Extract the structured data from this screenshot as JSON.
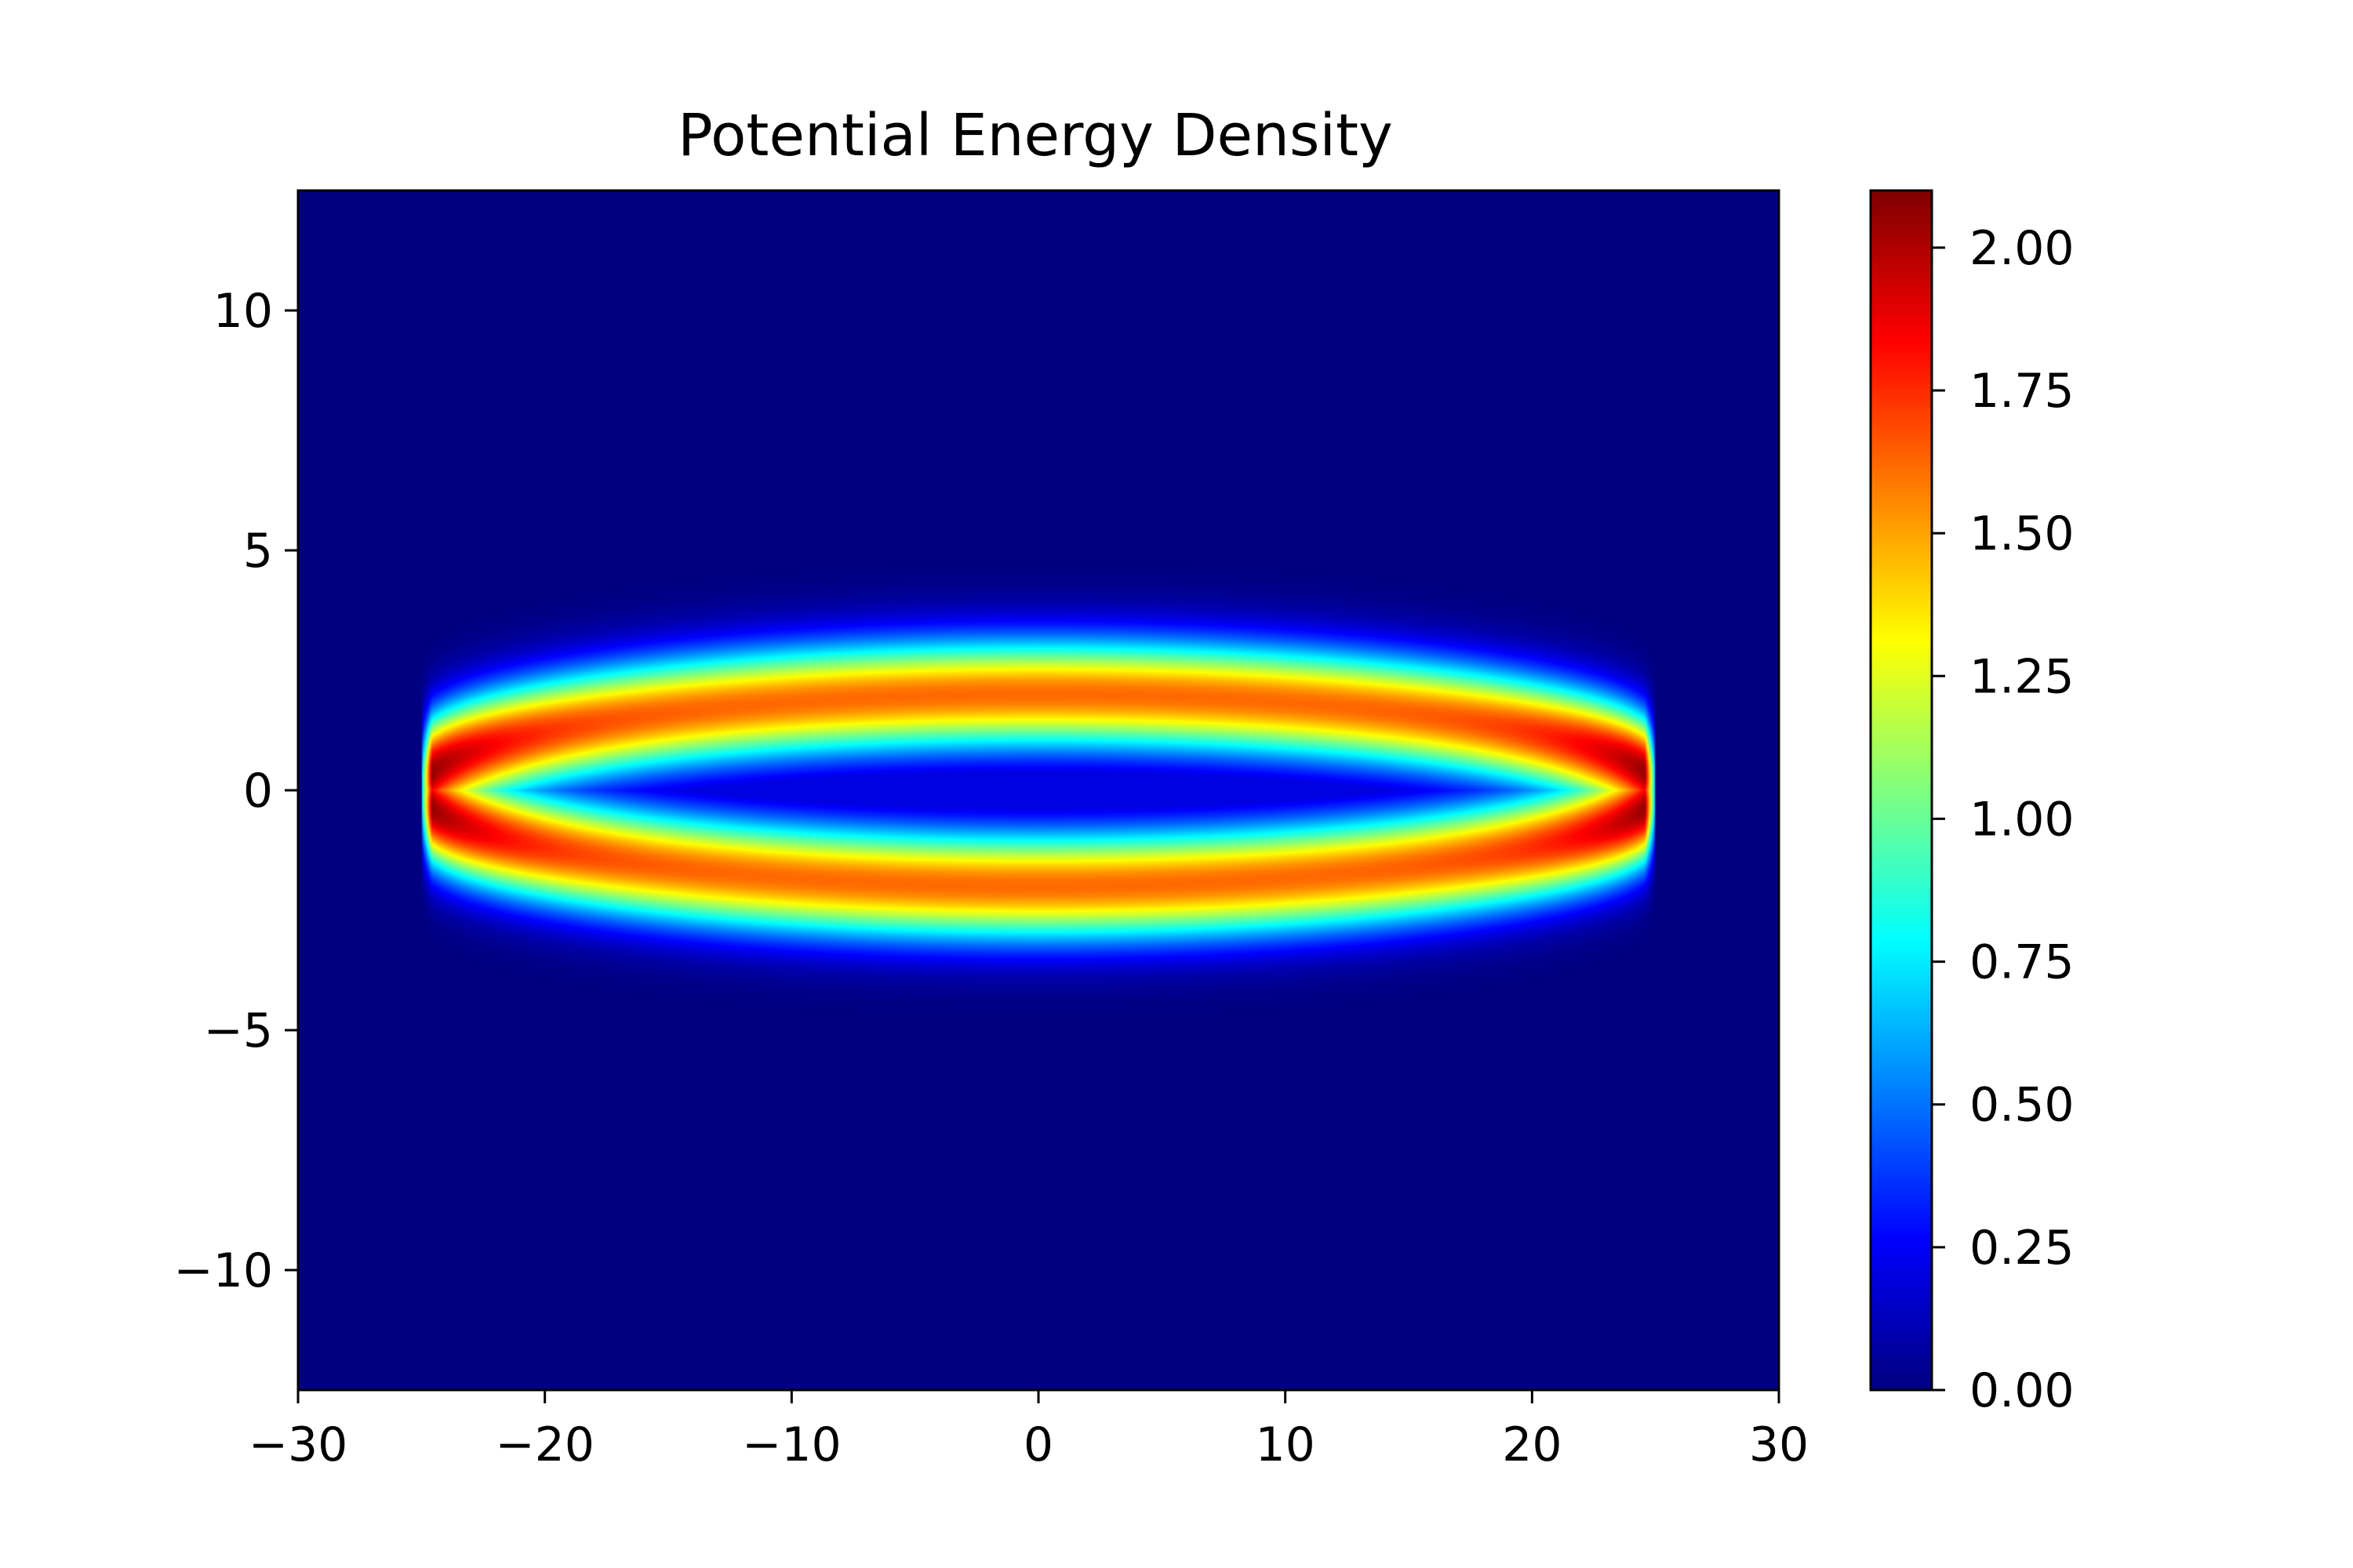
{
  "chart_data": {
    "type": "heatmap",
    "title": "Potential Energy Density",
    "xlabel": "",
    "ylabel": "",
    "xlim": [
      -30,
      30
    ],
    "ylim": [
      -12.5,
      12.5
    ],
    "x_ticks": [
      -30,
      -20,
      -10,
      0,
      10,
      20,
      30
    ],
    "x_tick_labels": [
      "−30",
      "−20",
      "−10",
      "0",
      "10",
      "20",
      "30"
    ],
    "y_ticks": [
      -10,
      -5,
      0,
      5,
      10
    ],
    "y_tick_labels": [
      "−10",
      "−5",
      "0",
      "5",
      "10"
    ],
    "colormap": "jet",
    "colorbar": {
      "vmin": 0,
      "vmax": 2.1,
      "ticks": [
        0,
        0.25,
        0.5,
        0.75,
        1.0,
        1.25,
        1.5,
        1.75,
        2.0
      ],
      "tick_labels": [
        "0.00",
        "0.25",
        "0.50",
        "0.75",
        "1.00",
        "1.25",
        "1.50",
        "1.75",
        "2.00"
      ]
    },
    "field": {
      "description_free_params": true,
      "ring_semi_axis_x": 25,
      "ring_semi_axis_y": 2,
      "ring_width": 0.8,
      "ring_peak_min": 1.62,
      "ring_peak_max": 2.1,
      "center_value": 0.2,
      "background_value": 0.0
    },
    "grid": false,
    "legend": "none"
  }
}
